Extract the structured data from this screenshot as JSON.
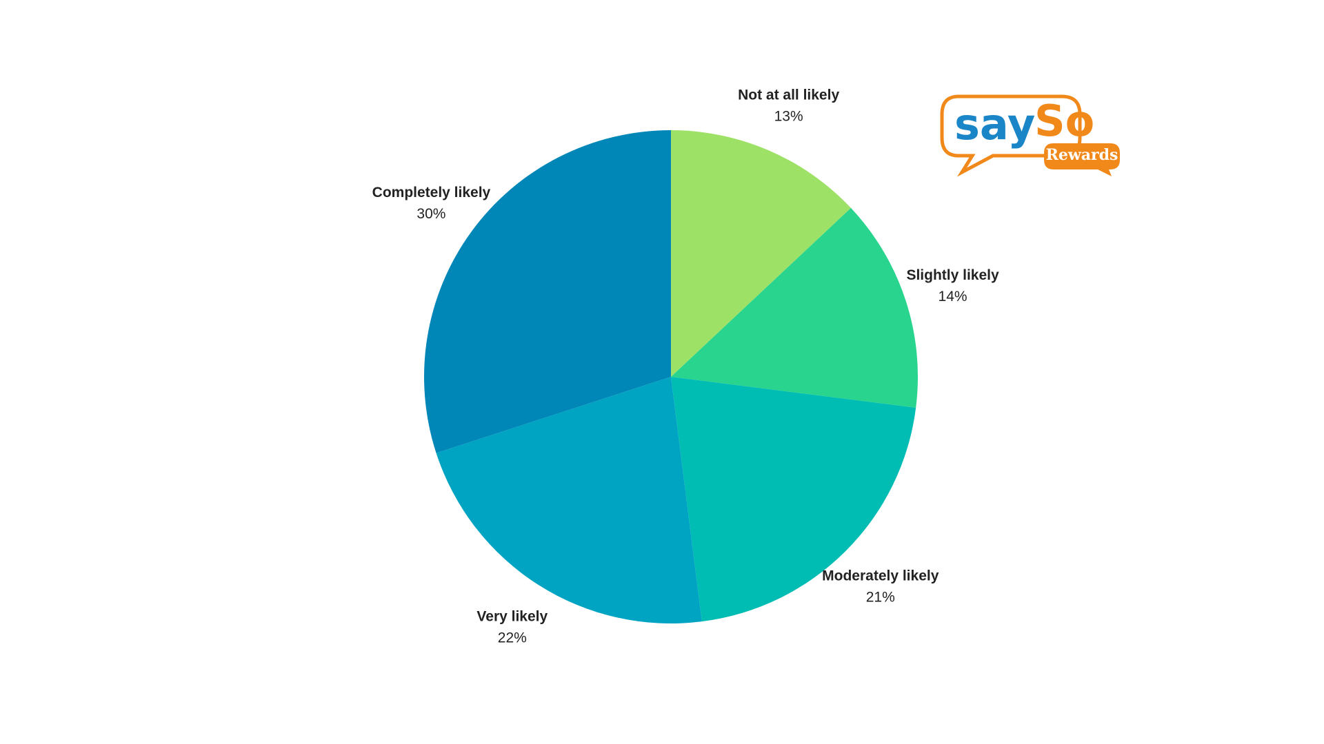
{
  "chart_data": {
    "type": "pie",
    "categories": [
      "Not at all likely",
      "Slightly likely",
      "Moderately likely",
      "Very likely",
      "Completely likely"
    ],
    "values": [
      13,
      14,
      21,
      22,
      30
    ],
    "value_labels": [
      "13%",
      "14%",
      "21%",
      "22%",
      "30%"
    ],
    "colors": [
      "#9de267",
      "#29d48e",
      "#00bdb3",
      "#00a4c3",
      "#0087b8"
    ]
  },
  "logo": {
    "part1": "say",
    "part2": "So",
    "badge": "Rewards"
  }
}
